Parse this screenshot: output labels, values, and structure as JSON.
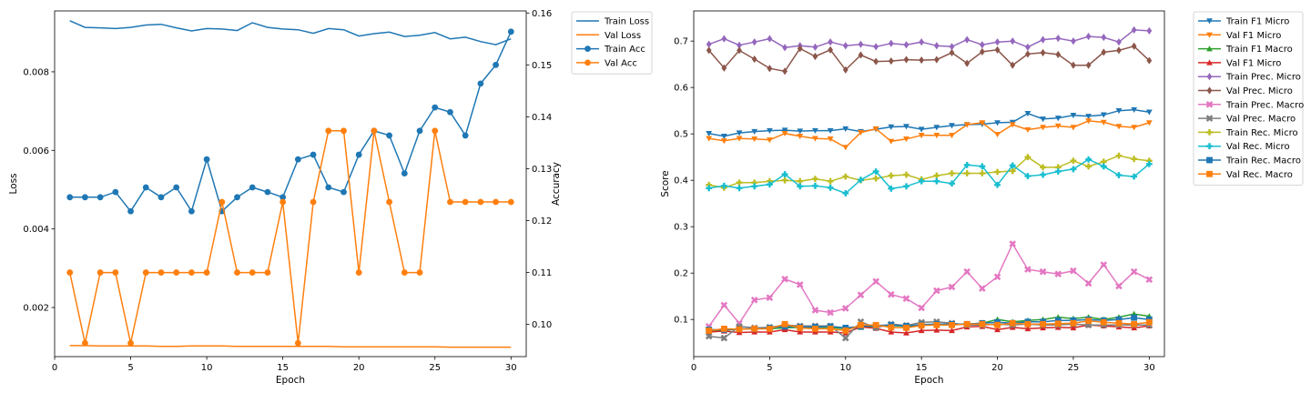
{
  "chart_data": [
    {
      "type": "line",
      "xlabel": "Epoch",
      "ylabel": "Loss",
      "y2label": "Accuracy",
      "xlim": [
        0,
        31
      ],
      "ylim": [
        0.00075,
        0.00955
      ],
      "y2lim": [
        0.0938,
        0.1604
      ],
      "xticks": [
        "0",
        "5",
        "10",
        "15",
        "20",
        "25",
        "30"
      ],
      "yticks": [
        "0.002",
        "0.004",
        "0.006",
        "0.008"
      ],
      "y2ticks": [
        "0.10",
        "0.11",
        "0.12",
        "0.13",
        "0.14",
        "0.15",
        "0.16"
      ],
      "legend_position": "outside upper-right",
      "x": [
        1,
        2,
        3,
        4,
        5,
        6,
        7,
        8,
        9,
        10,
        11,
        12,
        13,
        14,
        15,
        16,
        17,
        18,
        19,
        20,
        21,
        22,
        23,
        24,
        25,
        26,
        27,
        28,
        29,
        30
      ],
      "series": [
        {
          "name": "Train Loss",
          "axis": "left",
          "color": "#1f77b4",
          "marker": "none",
          "values": [
            0.0093,
            0.00913,
            0.00912,
            0.0091,
            0.00913,
            0.00919,
            0.00921,
            0.00912,
            0.00904,
            0.0091,
            0.00909,
            0.00905,
            0.00925,
            0.00913,
            0.00909,
            0.00907,
            0.00898,
            0.0091,
            0.00907,
            0.00891,
            0.00897,
            0.00901,
            0.0089,
            0.00893,
            0.009,
            0.00884,
            0.00888,
            0.00877,
            0.00869,
            0.00884
          ]
        },
        {
          "name": "Val Loss",
          "axis": "left",
          "color": "#ff7f0e",
          "marker": "none",
          "values": [
            0.00103,
            0.00103,
            0.00102,
            0.00102,
            0.00102,
            0.00102,
            0.00101,
            0.00101,
            0.00102,
            0.00102,
            0.00102,
            0.00101,
            0.00101,
            0.00101,
            0.00101,
            0.00101,
            0.00101,
            0.00101,
            0.001,
            0.001,
            0.001,
            0.001,
            0.001,
            0.001,
            0.001,
            0.00099,
            0.00099,
            0.00099,
            0.00099,
            0.00099
          ]
        },
        {
          "name": "Train Acc",
          "axis": "right",
          "color": "#1f77b4",
          "marker": "circle",
          "values": [
            0.1245,
            0.1245,
            0.1245,
            0.1255,
            0.1218,
            0.1264,
            0.1245,
            0.1264,
            0.1218,
            0.1318,
            0.1218,
            0.1245,
            0.1264,
            0.1255,
            0.1245,
            0.1318,
            0.1327,
            0.1264,
            0.1255,
            0.1327,
            0.1373,
            0.1364,
            0.1291,
            0.1373,
            0.1418,
            0.1409,
            0.1364,
            0.1464,
            0.15,
            0.1564
          ]
        },
        {
          "name": "Val Acc",
          "axis": "right",
          "color": "#ff7f0e",
          "marker": "circle",
          "values": [
            0.11,
            0.0964,
            0.11,
            0.11,
            0.0964,
            0.11,
            0.11,
            0.11,
            0.11,
            0.11,
            0.1236,
            0.11,
            0.11,
            0.11,
            0.1236,
            0.0964,
            0.1236,
            0.1373,
            0.1373,
            0.11,
            0.1373,
            0.1236,
            0.11,
            0.11,
            0.1373,
            0.1236,
            0.1236,
            0.1236,
            0.1236,
            0.1236
          ]
        }
      ]
    },
    {
      "type": "line",
      "xlabel": "Epoch",
      "ylabel": "Score",
      "xlim": [
        0,
        31
      ],
      "ylim": [
        0.02,
        0.765
      ],
      "xticks": [
        "0",
        "5",
        "10",
        "15",
        "20",
        "25",
        "30"
      ],
      "yticks": [
        "0.1",
        "0.2",
        "0.3",
        "0.4",
        "0.5",
        "0.6",
        "0.7"
      ],
      "legend_position": "outside upper-right",
      "x": [
        1,
        2,
        3,
        4,
        5,
        6,
        7,
        8,
        9,
        10,
        11,
        12,
        13,
        14,
        15,
        16,
        17,
        18,
        19,
        20,
        21,
        22,
        23,
        24,
        25,
        26,
        27,
        28,
        29,
        30
      ],
      "series": [
        {
          "name": "Train F1 Micro",
          "color": "#1f77b4",
          "marker": "tri_down",
          "values": [
            0.501,
            0.495,
            0.502,
            0.505,
            0.507,
            0.508,
            0.506,
            0.507,
            0.507,
            0.511,
            0.505,
            0.51,
            0.515,
            0.516,
            0.51,
            0.514,
            0.518,
            0.52,
            0.521,
            0.524,
            0.525,
            0.544,
            0.532,
            0.534,
            0.54,
            0.538,
            0.541,
            0.55,
            0.552,
            0.547
          ]
        },
        {
          "name": "Val F1 Micro",
          "color": "#ff7f0e",
          "marker": "tri_down",
          "values": [
            0.49,
            0.485,
            0.49,
            0.489,
            0.487,
            0.501,
            0.495,
            0.49,
            0.489,
            0.471,
            0.503,
            0.511,
            0.484,
            0.489,
            0.497,
            0.497,
            0.497,
            0.52,
            0.524,
            0.499,
            0.52,
            0.509,
            0.514,
            0.517,
            0.514,
            0.528,
            0.525,
            0.516,
            0.514,
            0.524
          ]
        },
        {
          "name": "Train F1 Macro",
          "color": "#2ca02c",
          "marker": "tri_up",
          "values": [
            0.075,
            0.077,
            0.079,
            0.08,
            0.08,
            0.082,
            0.083,
            0.083,
            0.083,
            0.08,
            0.083,
            0.085,
            0.087,
            0.085,
            0.088,
            0.09,
            0.09,
            0.09,
            0.092,
            0.1,
            0.095,
            0.098,
            0.1,
            0.105,
            0.102,
            0.105,
            0.1,
            0.105,
            0.112,
            0.107
          ]
        },
        {
          "name": "Val F1 Micro",
          "color": "#d62728",
          "marker": "tri_up",
          "values": [
            0.073,
            0.075,
            0.072,
            0.073,
            0.073,
            0.078,
            0.073,
            0.073,
            0.073,
            0.071,
            0.084,
            0.081,
            0.073,
            0.071,
            0.076,
            0.077,
            0.076,
            0.084,
            0.085,
            0.078,
            0.083,
            0.08,
            0.082,
            0.083,
            0.082,
            0.088,
            0.086,
            0.084,
            0.082,
            0.086
          ]
        },
        {
          "name": "Train Prec. Micro",
          "color": "#9467bd",
          "marker": "diamond",
          "values": [
            0.693,
            0.705,
            0.691,
            0.698,
            0.705,
            0.686,
            0.69,
            0.687,
            0.698,
            0.69,
            0.693,
            0.688,
            0.695,
            0.692,
            0.698,
            0.69,
            0.688,
            0.703,
            0.692,
            0.698,
            0.7,
            0.687,
            0.703,
            0.706,
            0.7,
            0.71,
            0.708,
            0.698,
            0.724,
            0.722
          ]
        },
        {
          "name": "Val Prec. Micro",
          "color": "#8c564b",
          "marker": "diamond",
          "values": [
            0.68,
            0.642,
            0.68,
            0.661,
            0.641,
            0.635,
            0.684,
            0.667,
            0.681,
            0.638,
            0.67,
            0.656,
            0.657,
            0.66,
            0.659,
            0.66,
            0.675,
            0.652,
            0.677,
            0.681,
            0.648,
            0.672,
            0.675,
            0.671,
            0.648,
            0.648,
            0.676,
            0.68,
            0.689,
            0.658
          ]
        },
        {
          "name": "Train Prec. Macro",
          "color": "#e377c2",
          "marker": "x",
          "values": [
            0.085,
            0.131,
            0.092,
            0.142,
            0.147,
            0.187,
            0.175,
            0.12,
            0.115,
            0.124,
            0.153,
            0.182,
            0.154,
            0.145,
            0.125,
            0.162,
            0.17,
            0.203,
            0.167,
            0.192,
            0.263,
            0.208,
            0.203,
            0.198,
            0.205,
            0.178,
            0.218,
            0.172,
            0.203,
            0.186
          ]
        },
        {
          "name": "Val Prec. Macro",
          "color": "#7f7f7f",
          "marker": "x",
          "values": [
            0.064,
            0.06,
            0.085,
            0.082,
            0.083,
            0.088,
            0.086,
            0.086,
            0.086,
            0.06,
            0.095,
            0.082,
            0.09,
            0.087,
            0.094,
            0.095,
            0.092,
            0.088,
            0.088,
            0.09,
            0.088,
            0.09,
            0.088,
            0.088,
            0.09,
            0.088,
            0.088,
            0.088,
            0.088,
            0.088
          ]
        },
        {
          "name": "Train Rec. Micro",
          "color": "#bcbd22",
          "marker": "plus",
          "values": [
            0.39,
            0.384,
            0.395,
            0.395,
            0.398,
            0.4,
            0.398,
            0.403,
            0.398,
            0.408,
            0.4,
            0.404,
            0.41,
            0.412,
            0.402,
            0.41,
            0.415,
            0.415,
            0.415,
            0.418,
            0.42,
            0.45,
            0.428,
            0.428,
            0.442,
            0.43,
            0.44,
            0.453,
            0.446,
            0.442
          ]
        },
        {
          "name": "Val Rec. Micro",
          "color": "#17becf",
          "marker": "plus",
          "values": [
            0.383,
            0.388,
            0.383,
            0.387,
            0.391,
            0.413,
            0.387,
            0.388,
            0.384,
            0.372,
            0.401,
            0.419,
            0.382,
            0.387,
            0.398,
            0.398,
            0.393,
            0.433,
            0.43,
            0.39,
            0.432,
            0.409,
            0.412,
            0.419,
            0.424,
            0.445,
            0.43,
            0.411,
            0.408,
            0.435
          ]
        },
        {
          "name": "Train Rec. Macro",
          "color": "#1f77b4",
          "marker": "square",
          "values": [
            0.078,
            0.078,
            0.08,
            0.08,
            0.082,
            0.085,
            0.084,
            0.084,
            0.085,
            0.082,
            0.085,
            0.087,
            0.088,
            0.086,
            0.089,
            0.09,
            0.09,
            0.09,
            0.092,
            0.094,
            0.092,
            0.095,
            0.095,
            0.098,
            0.098,
            0.1,
            0.098,
            0.1,
            0.104,
            0.1
          ]
        },
        {
          "name": "Val Rec. Macro",
          "color": "#ff7f0e",
          "marker": "square",
          "values": [
            0.076,
            0.08,
            0.079,
            0.08,
            0.08,
            0.09,
            0.082,
            0.08,
            0.08,
            0.076,
            0.088,
            0.088,
            0.083,
            0.082,
            0.087,
            0.088,
            0.088,
            0.09,
            0.09,
            0.088,
            0.092,
            0.09,
            0.09,
            0.091,
            0.092,
            0.097,
            0.094,
            0.092,
            0.09,
            0.094
          ]
        }
      ]
    }
  ]
}
